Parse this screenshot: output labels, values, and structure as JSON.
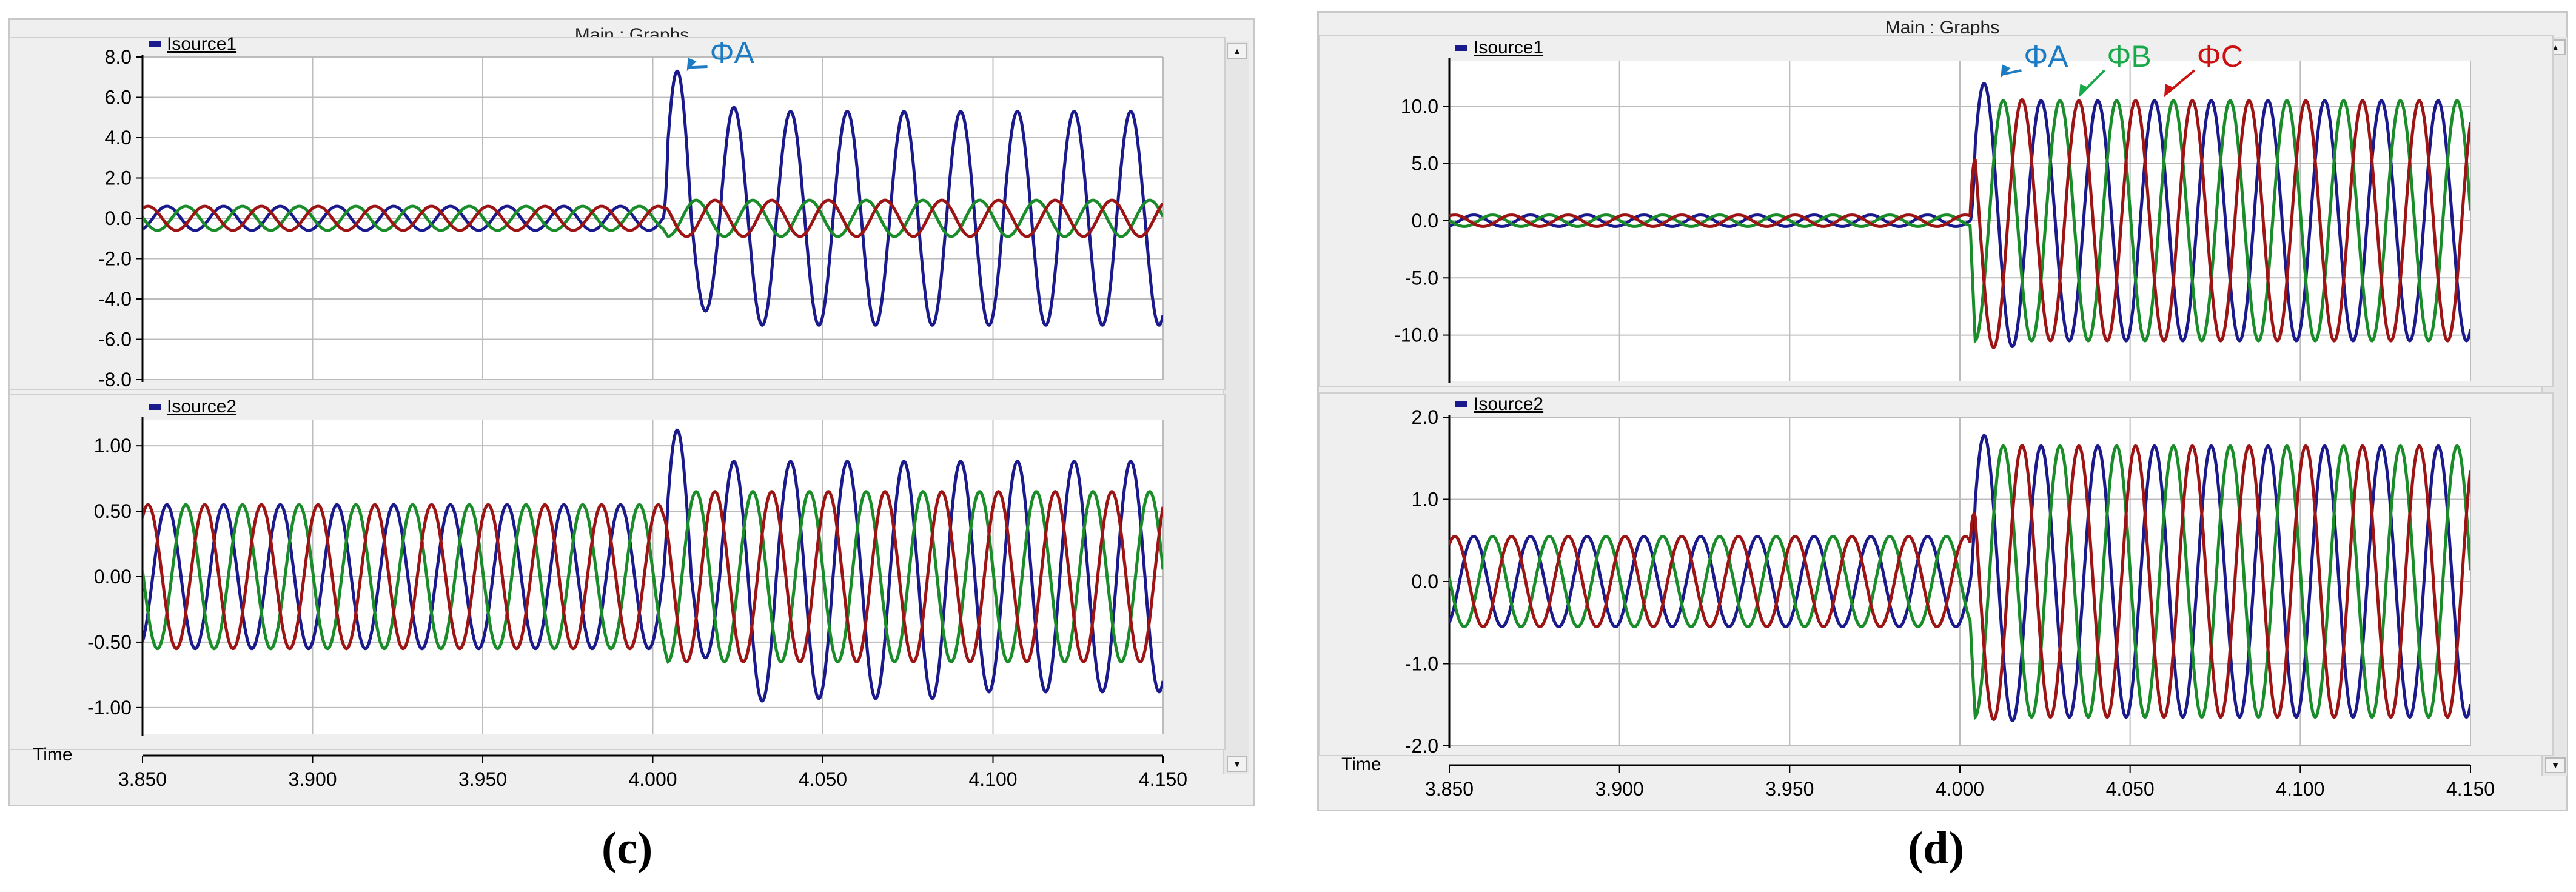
{
  "windows": [
    {
      "title": "Main : Graphs",
      "time_label": "Time",
      "caption": "(c)"
    },
    {
      "title": "Main : Graphs",
      "time_label": "Time",
      "caption": "(d)"
    }
  ],
  "colors": {
    "phase_a": "#1a1a8c",
    "phase_b": "#1a8c2a",
    "phase_c": "#9c1414",
    "annotation_a": "#1d7bc4",
    "annotation_b": "#19a84a",
    "annotation_c": "#cc1111",
    "grid": "#bcbcbc"
  },
  "chart_data": [
    {
      "type": "line",
      "legend": "Isource1",
      "xlim": [
        3.85,
        4.15
      ],
      "x_ticks": [
        "3.850",
        "3.900",
        "3.950",
        "4.000",
        "4.050",
        "4.100",
        "4.150"
      ],
      "ylim": [
        -8.0,
        8.0
      ],
      "y_ticks": [
        "8.0",
        "6.0",
        "4.0",
        "2.0",
        "0.0",
        "-2.0",
        "-4.0",
        "-6.0",
        "-8.0"
      ],
      "fault_time": 4.003,
      "frequency_hz": 60,
      "series": [
        {
          "pre_amplitude": 0.6,
          "post_peaks": [
            7.3,
            -4.6,
            5.5,
            -5.3,
            5.3,
            -5.3,
            5.3,
            -5.3,
            5.3,
            -5.3,
            5.3
          ],
          "phase_deg": 0
        },
        {
          "pre_amplitude": 0.6,
          "post_amplitude": 0.9,
          "phase_deg": -120
        },
        {
          "pre_amplitude": 0.6,
          "post_amplitude": 0.9,
          "phase_deg": 120
        }
      ],
      "annotations": [
        {
          "text": "ΦA",
          "x": 4.01,
          "y": 7.3
        }
      ]
    },
    {
      "type": "line",
      "legend": "Isource2",
      "xlim": [
        3.85,
        4.15
      ],
      "x_ticks": [
        "3.850",
        "3.900",
        "3.950",
        "4.000",
        "4.050",
        "4.100",
        "4.150"
      ],
      "ylim": [
        -1.2,
        1.2
      ],
      "y_ticks": [
        "1.00",
        "0.50",
        "0.00",
        "-0.50",
        "-1.00"
      ],
      "fault_time": 4.003,
      "frequency_hz": 60,
      "series": [
        {
          "pre_amplitude": 0.55,
          "post_peaks": [
            1.12,
            -0.62,
            0.88,
            -0.95,
            0.88,
            -0.93,
            0.88,
            -0.93,
            0.88,
            -0.93,
            0.88
          ],
          "phase_deg": 0
        },
        {
          "pre_amplitude": 0.55,
          "post_amplitude": 0.65,
          "phase_deg": -120
        },
        {
          "pre_amplitude": 0.55,
          "post_amplitude": 0.65,
          "phase_deg": 120
        }
      ],
      "annotations": []
    },
    {
      "type": "line",
      "legend": "Isource1",
      "xlim": [
        3.85,
        4.15
      ],
      "x_ticks": [
        "3.850",
        "3.900",
        "3.950",
        "4.000",
        "4.050",
        "4.100",
        "4.150"
      ],
      "ylim": [
        -14.0,
        14.0
      ],
      "y_ticks": [
        "10.0",
        "5.0",
        "0.0",
        "-5.0",
        "-10.0"
      ],
      "fault_time": 4.003,
      "frequency_hz": 60,
      "series": [
        {
          "pre_amplitude": 0.5,
          "post_amplitude": 10.5,
          "first_peak": 12.5,
          "phase_deg": 0
        },
        {
          "pre_amplitude": 0.5,
          "post_amplitude": 10.5,
          "phase_deg": -120
        },
        {
          "pre_amplitude": 0.5,
          "post_amplitude": 10.5,
          "first_peak": -11.5,
          "phase_deg": 120
        }
      ],
      "annotations": [
        {
          "text": "ΦA",
          "x": 4.012,
          "y": 12.5
        },
        {
          "text": "ΦB",
          "x": 4.035,
          "y": 10.8
        },
        {
          "text": "ΦC",
          "x": 4.06,
          "y": 10.8
        }
      ]
    },
    {
      "type": "line",
      "legend": "Isource2",
      "xlim": [
        3.85,
        4.15
      ],
      "x_ticks": [
        "3.850",
        "3.900",
        "3.950",
        "4.000",
        "4.050",
        "4.100",
        "4.150"
      ],
      "ylim": [
        -2.0,
        2.0
      ],
      "y_ticks": [
        "2.0",
        "1.0",
        "0.0",
        "-1.0",
        "-2.0"
      ],
      "fault_time": 4.003,
      "frequency_hz": 60,
      "series": [
        {
          "pre_amplitude": 0.55,
          "post_amplitude": 1.65,
          "first_peak": 1.82,
          "phase_deg": 0
        },
        {
          "pre_amplitude": 0.55,
          "post_amplitude": 1.65,
          "phase_deg": -120
        },
        {
          "pre_amplitude": 0.55,
          "post_amplitude": 1.65,
          "first_peak": -1.7,
          "phase_deg": 120
        }
      ],
      "annotations": []
    }
  ]
}
